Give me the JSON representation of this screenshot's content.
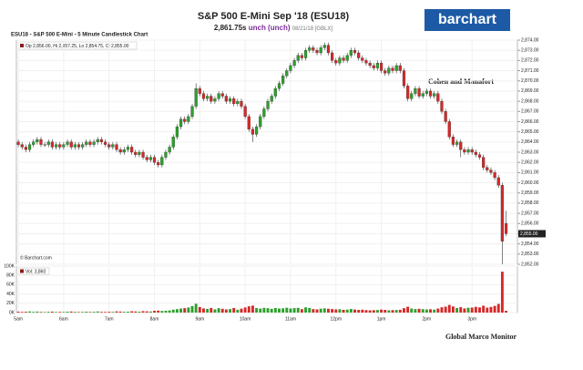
{
  "chart_data": {
    "type": "candlestick",
    "title": "S&P 500 E-Mini Sep '18 (ESU18)",
    "last": "2,861.75s",
    "change": "unch (unch)",
    "date": "08/21/18 [GBLX]",
    "logo": "barchart",
    "chart_title": "ESU18 - S&P 500 E-Mini - 5 Minute Candlestick Chart",
    "ohlc_label": "Op 2,856.00, Hi 2,857.25, Lo 2,854.75, Cl 2,855.00",
    "annotation": "Cohen and Manafort",
    "watermark": "© Barchart.com",
    "footer": "Global Marco Monitor",
    "up_color": "#2ca02c",
    "down_color": "#d62728",
    "grid": true,
    "last_price": {
      "value": 2855,
      "label": "2,855.00"
    },
    "xlim": [
      -0.5,
      132
    ],
    "xticks": [
      {
        "value": 0,
        "label": "5am"
      },
      {
        "value": 12,
        "label": "6am"
      },
      {
        "value": 24,
        "label": "7am"
      },
      {
        "value": 36,
        "label": "8am"
      },
      {
        "value": 48,
        "label": "9am"
      },
      {
        "value": 60,
        "label": "10am"
      },
      {
        "value": 72,
        "label": "11am"
      },
      {
        "value": 84,
        "label": "12pm"
      },
      {
        "value": 96,
        "label": "1pm"
      },
      {
        "value": 108,
        "label": "2pm"
      },
      {
        "value": 120,
        "label": "3pm"
      }
    ],
    "ylim": [
      2852,
      2874
    ],
    "yticks": [
      {
        "value": 2852,
        "label": "2,852.00"
      },
      {
        "value": 2853,
        "label": "2,853.00"
      },
      {
        "value": 2854,
        "label": "2,854.00"
      },
      {
        "value": 2855,
        "label": "2,855.00"
      },
      {
        "value": 2856,
        "label": "2,856.00"
      },
      {
        "value": 2857,
        "label": "2,857.00"
      },
      {
        "value": 2858,
        "label": "2,858.00"
      },
      {
        "value": 2859,
        "label": "2,859.00"
      },
      {
        "value": 2860,
        "label": "2,860.00"
      },
      {
        "value": 2861,
        "label": "2,861.00"
      },
      {
        "value": 2862,
        "label": "2,862.00"
      },
      {
        "value": 2863,
        "label": "2,863.00"
      },
      {
        "value": 2864,
        "label": "2,864.00"
      },
      {
        "value": 2865,
        "label": "2,865.00"
      },
      {
        "value": 2866,
        "label": "2,866.00"
      },
      {
        "value": 2867,
        "label": "2,867.00"
      },
      {
        "value": 2868,
        "label": "2,868.00"
      },
      {
        "value": 2869,
        "label": "2,869.00"
      },
      {
        "value": 2870,
        "label": "2,870.00"
      },
      {
        "value": 2871,
        "label": "2,871.00"
      },
      {
        "value": 2872,
        "label": "2,872.00"
      },
      {
        "value": 2873,
        "label": "2,873.00"
      },
      {
        "value": 2874,
        "label": "2,874.00"
      }
    ],
    "ohlc": [
      [
        2864,
        2864.25,
        2863.5,
        2863.75
      ],
      [
        2863.75,
        2864,
        2863.25,
        2863.5
      ],
      [
        2863.5,
        2863.75,
        2863,
        2863.25
      ],
      [
        2863.25,
        2864,
        2863,
        2863.75
      ],
      [
        2863.75,
        2864.25,
        2863.5,
        2864
      ],
      [
        2864,
        2864.5,
        2863.75,
        2864.25
      ],
      [
        2864.25,
        2864.5,
        2863.5,
        2863.75
      ],
      [
        2863.75,
        2864,
        2863.5,
        2863.75
      ],
      [
        2863.75,
        2864.25,
        2863.5,
        2864
      ],
      [
        2864,
        2864.25,
        2863.25,
        2863.5
      ],
      [
        2863.5,
        2864,
        2863.25,
        2863.75
      ],
      [
        2863.75,
        2864,
        2863.25,
        2863.5
      ],
      [
        2863.5,
        2864,
        2863.25,
        2863.75
      ],
      [
        2863.75,
        2864.25,
        2863.5,
        2864
      ],
      [
        2864,
        2864.25,
        2863.25,
        2863.5
      ],
      [
        2863.5,
        2864,
        2863.25,
        2863.75
      ],
      [
        2863.75,
        2864,
        2863.25,
        2863.5
      ],
      [
        2863.5,
        2864,
        2863.25,
        2863.75
      ],
      [
        2863.75,
        2864.25,
        2863.5,
        2864
      ],
      [
        2864,
        2864.25,
        2863.5,
        2863.75
      ],
      [
        2863.75,
        2864.25,
        2863.5,
        2864
      ],
      [
        2864,
        2864.5,
        2863.75,
        2864.25
      ],
      [
        2864.25,
        2864.5,
        2863.75,
        2864
      ],
      [
        2864,
        2864.25,
        2863.5,
        2863.75
      ],
      [
        2863.75,
        2864,
        2863.25,
        2863.5
      ],
      [
        2863.5,
        2864,
        2863.25,
        2863.75
      ],
      [
        2863.75,
        2864,
        2863,
        2863.25
      ],
      [
        2863.25,
        2863.5,
        2862.75,
        2863
      ],
      [
        2863,
        2863.5,
        2862.75,
        2863.25
      ],
      [
        2863.25,
        2863.75,
        2863,
        2863.5
      ],
      [
        2863.5,
        2863.75,
        2862.75,
        2863
      ],
      [
        2863,
        2863.25,
        2862.5,
        2862.75
      ],
      [
        2862.75,
        2863.25,
        2862.5,
        2863
      ],
      [
        2863,
        2863.25,
        2862.25,
        2862.5
      ],
      [
        2862.5,
        2862.75,
        2862,
        2862.25
      ],
      [
        2862.25,
        2862.75,
        2862,
        2862.5
      ],
      [
        2862.5,
        2862.75,
        2861.75,
        2862
      ],
      [
        2862,
        2862.25,
        2861.5,
        2861.75
      ],
      [
        2861.75,
        2862.75,
        2861.5,
        2862.5
      ],
      [
        2862.5,
        2863.25,
        2862.25,
        2863
      ],
      [
        2863,
        2863.75,
        2862.75,
        2863.5
      ],
      [
        2863.5,
        2864.75,
        2863.25,
        2864.5
      ],
      [
        2864.5,
        2865.75,
        2864.25,
        2865.5
      ],
      [
        2865.5,
        2866.5,
        2865.25,
        2866.25
      ],
      [
        2866.25,
        2866.5,
        2865.75,
        2866
      ],
      [
        2866,
        2866.75,
        2865.75,
        2866.5
      ],
      [
        2866.5,
        2867.75,
        2866.25,
        2867.5
      ],
      [
        2867.5,
        2869.75,
        2867.25,
        2869.25
      ],
      [
        2869.25,
        2869.5,
        2868.5,
        2868.75
      ],
      [
        2868.75,
        2869,
        2868,
        2868.25
      ],
      [
        2868.25,
        2868.75,
        2868,
        2868.5
      ],
      [
        2868.5,
        2868.75,
        2867.75,
        2868
      ],
      [
        2868,
        2868.5,
        2867.75,
        2868.25
      ],
      [
        2868.25,
        2869,
        2868,
        2868.75
      ],
      [
        2868.75,
        2869,
        2868.25,
        2868.5
      ],
      [
        2868.5,
        2868.75,
        2867.75,
        2868
      ],
      [
        2868,
        2868.5,
        2867.75,
        2868.25
      ],
      [
        2868.25,
        2868.5,
        2867.5,
        2867.75
      ],
      [
        2867.75,
        2868.25,
        2867.5,
        2868
      ],
      [
        2868,
        2868.25,
        2867.25,
        2867.5
      ],
      [
        2867.5,
        2867.75,
        2866.25,
        2866.5
      ],
      [
        2866.5,
        2866.75,
        2865,
        2865.25
      ],
      [
        2865.25,
        2865.5,
        2864,
        2864.75
      ],
      [
        2864.75,
        2865.75,
        2864.5,
        2865.5
      ],
      [
        2865.5,
        2866.75,
        2865.25,
        2866.5
      ],
      [
        2866.5,
        2867.5,
        2866.25,
        2867.25
      ],
      [
        2867.25,
        2868.25,
        2867,
        2868
      ],
      [
        2868,
        2868.75,
        2867.75,
        2868.5
      ],
      [
        2868.5,
        2869.5,
        2868.25,
        2869.25
      ],
      [
        2869.25,
        2870,
        2869,
        2869.75
      ],
      [
        2869.75,
        2870.75,
        2869.5,
        2870.5
      ],
      [
        2870.5,
        2871.25,
        2870.25,
        2871
      ],
      [
        2871,
        2871.75,
        2870.75,
        2871.5
      ],
      [
        2871.5,
        2872.25,
        2871.25,
        2872
      ],
      [
        2872,
        2872.75,
        2871.75,
        2872.5
      ],
      [
        2872.5,
        2872.75,
        2872,
        2872.25
      ],
      [
        2872.25,
        2873.25,
        2872,
        2873
      ],
      [
        2873,
        2873.5,
        2872.75,
        2873.25
      ],
      [
        2873.25,
        2873.5,
        2872.75,
        2873
      ],
      [
        2873,
        2873.25,
        2872.5,
        2872.75
      ],
      [
        2872.75,
        2873.5,
        2872.5,
        2873.25
      ],
      [
        2873.25,
        2873.75,
        2873,
        2873.5
      ],
      [
        2873.5,
        2873.75,
        2872.5,
        2872.75
      ],
      [
        2872.75,
        2873,
        2871.75,
        2872
      ],
      [
        2872,
        2872.25,
        2871.5,
        2871.75
      ],
      [
        2871.75,
        2872.5,
        2871.5,
        2872.25
      ],
      [
        2872.25,
        2872.5,
        2871.75,
        2872
      ],
      [
        2872,
        2872.75,
        2871.75,
        2872.5
      ],
      [
        2872.5,
        2873.25,
        2872.25,
        2873
      ],
      [
        2873,
        2873.25,
        2872.5,
        2872.75
      ],
      [
        2872.75,
        2873,
        2872,
        2872.25
      ],
      [
        2872.25,
        2872.5,
        2871.75,
        2872
      ],
      [
        2872,
        2872.25,
        2871.5,
        2871.75
      ],
      [
        2871.75,
        2872,
        2871.25,
        2871.5
      ],
      [
        2871.5,
        2871.75,
        2871,
        2871.25
      ],
      [
        2871.25,
        2872,
        2871,
        2871.75
      ],
      [
        2871.75,
        2872,
        2870.75,
        2871
      ],
      [
        2871,
        2871.25,
        2870.5,
        2870.75
      ],
      [
        2870.75,
        2871.5,
        2870.5,
        2871.25
      ],
      [
        2871.25,
        2871.5,
        2870.75,
        2871
      ],
      [
        2871,
        2871.75,
        2870.75,
        2871.5
      ],
      [
        2871.5,
        2871.75,
        2870.75,
        2871
      ],
      [
        2871,
        2871.25,
        2869.25,
        2869.5
      ],
      [
        2869.5,
        2869.75,
        2868,
        2868.25
      ],
      [
        2868.25,
        2869,
        2868,
        2868.75
      ],
      [
        2868.75,
        2869.5,
        2868.5,
        2869.25
      ],
      [
        2869.25,
        2869.5,
        2868.25,
        2868.5
      ],
      [
        2868.5,
        2869,
        2868.25,
        2868.75
      ],
      [
        2868.75,
        2869.25,
        2868.5,
        2869
      ],
      [
        2869,
        2869.25,
        2868.25,
        2868.5
      ],
      [
        2868.5,
        2869,
        2868.25,
        2868.75
      ],
      [
        2868.75,
        2869,
        2867.75,
        2868
      ],
      [
        2868,
        2868.25,
        2866.75,
        2867
      ],
      [
        2867,
        2867.25,
        2865.75,
        2866
      ],
      [
        2866,
        2866.25,
        2864.25,
        2864.5
      ],
      [
        2864.5,
        2864.75,
        2863.5,
        2863.75
      ],
      [
        2863.75,
        2864.25,
        2863.5,
        2864
      ],
      [
        2864,
        2864.25,
        2862.5,
        2863.25
      ],
      [
        2863.25,
        2863.5,
        2862.75,
        2863
      ],
      [
        2863,
        2863.5,
        2862.75,
        2863.25
      ],
      [
        2863.25,
        2863.5,
        2862.75,
        2863
      ],
      [
        2863,
        2863.25,
        2862.5,
        2862.75
      ],
      [
        2862.75,
        2863,
        2862.25,
        2862.5
      ],
      [
        2862.5,
        2862.75,
        2861.25,
        2861.5
      ],
      [
        2861.5,
        2861.75,
        2861,
        2861.25
      ],
      [
        2861.25,
        2861.5,
        2860.75,
        2861
      ],
      [
        2861,
        2861.25,
        2860.25,
        2860.5
      ],
      [
        2860.5,
        2860.75,
        2859.5,
        2859.75
      ],
      [
        2859.75,
        2860,
        2852,
        2854.25
      ],
      [
        2856,
        2857.25,
        2854.75,
        2855
      ]
    ],
    "volume": {
      "label": "Vol: 3,860",
      "ylim": [
        0,
        100000
      ],
      "yticks": [
        {
          "value": 0,
          "label": "0K"
        },
        {
          "value": 20000,
          "label": "20K"
        },
        {
          "value": 40000,
          "label": "40K"
        },
        {
          "value": 60000,
          "label": "60K"
        },
        {
          "value": 80000,
          "label": "80K"
        },
        {
          "value": 100000,
          "label": "100K"
        }
      ],
      "values": [
        2000,
        1500,
        1800,
        2500,
        1600,
        2200,
        1400,
        1200,
        1700,
        2100,
        1300,
        1500,
        1400,
        1800,
        2300,
        1600,
        1200,
        1500,
        1900,
        1300,
        1700,
        2400,
        1600,
        1400,
        1800,
        1500,
        2600,
        2200,
        1700,
        1900,
        2800,
        2400,
        2000,
        3100,
        2700,
        2300,
        3800,
        4200,
        3500,
        3900,
        4600,
        6200,
        7400,
        8800,
        9500,
        11000,
        14000,
        19000,
        12000,
        9000,
        8000,
        10000,
        7000,
        9500,
        8200,
        6800,
        7500,
        9800,
        6200,
        8400,
        11000,
        13500,
        15000,
        9800,
        8600,
        10200,
        9400,
        8100,
        9900,
        8700,
        9200,
        10400,
        8800,
        9600,
        10200,
        7400,
        11200,
        9800,
        7600,
        6900,
        8400,
        9100,
        8200,
        7600,
        6800,
        7200,
        5900,
        6400,
        7800,
        6600,
        5800,
        6200,
        5400,
        4800,
        5200,
        5600,
        6400,
        5800,
        4900,
        5300,
        5600,
        6100,
        9400,
        12500,
        8800,
        7600,
        8200,
        7400,
        6800,
        7100,
        6400,
        8600,
        11400,
        12800,
        16500,
        13200,
        9800,
        11600,
        8900,
        10400,
        10800,
        12400,
        11200,
        14800,
        10600,
        12200,
        14400,
        18600,
        88000,
        3860
      ]
    }
  }
}
